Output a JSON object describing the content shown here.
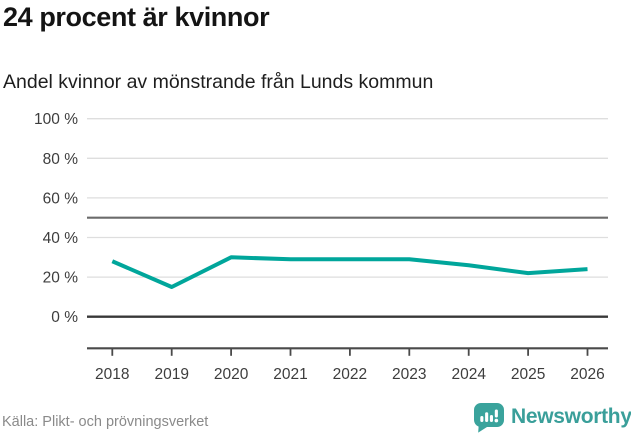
{
  "header": {
    "title": "24 procent är kvinnor",
    "subtitle": "Andel kvinnor av mönstrande från Lunds kommun"
  },
  "chart_data": {
    "type": "line",
    "title": "24 procent är kvinnor",
    "subtitle": "Andel kvinnor av mönstrande från Lunds kommun",
    "categories": [
      "2018",
      "2019",
      "2020",
      "2021",
      "2022",
      "2023",
      "2024",
      "2025",
      "2026"
    ],
    "series": [
      {
        "name": "Andel kvinnor av mönstrande från Lunds kommun",
        "values": [
          28,
          15,
          30,
          29,
          29,
          29,
          26,
          22,
          24
        ]
      }
    ],
    "unit": "%",
    "ylim": [
      0,
      100
    ],
    "y_ticks": [
      0,
      20,
      40,
      60,
      80,
      100
    ],
    "y_tick_labels": [
      "0 %",
      "20 %",
      "40 %",
      "60 %",
      "80 %",
      "100 %"
    ],
    "reference_line": 50,
    "grid": true,
    "legend": "none",
    "line_color": "#00a69b"
  },
  "colors": {
    "accent_line": "#00a69b",
    "brand_teal": "#3a9f9a",
    "grid_light": "#dedede",
    "grid_reference": "#6b6b6b",
    "grid_zero": "#383838",
    "axis": "#4a4a4a",
    "axis_text": "#3d3d3d"
  },
  "footer": {
    "source": "Källa: Plikt- och prövningsverket",
    "brand": "Newsworthy",
    "brand_icon": "newsworthy-speech-bubble-barchart-icon"
  }
}
